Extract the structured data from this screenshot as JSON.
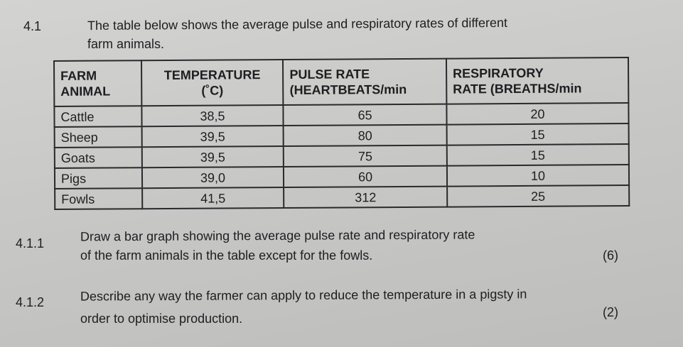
{
  "question": {
    "number": "4.1",
    "intro_line1": "The table below shows the average pulse and respiratory rates of different",
    "intro_line2": "farm animals."
  },
  "table": {
    "headers": [
      [
        "FARM",
        "ANIMAL"
      ],
      [
        "TEMPERATURE",
        "(˚C)"
      ],
      [
        "PULSE RATE",
        "(HEARTBEATS/min"
      ],
      [
        "RESPIRATORY",
        "RATE (BREATHS/min"
      ]
    ],
    "rows": [
      [
        "Cattle",
        "38,5",
        "65",
        "20"
      ],
      [
        "Sheep",
        "39,5",
        "80",
        "15"
      ],
      [
        "Goats",
        "39,5",
        "75",
        "15"
      ],
      [
        "Pigs",
        "39,0",
        "60",
        "10"
      ],
      [
        "Fowls",
        "41,5",
        "312",
        "25"
      ]
    ]
  },
  "subquestions": [
    {
      "number": "4.1.1",
      "line1": "Draw a bar graph showing the average pulse rate and respiratory rate",
      "line2": "of the farm animals in the table except for the fowls.",
      "marks": "(6)"
    },
    {
      "number": "4.1.2",
      "line1": "Describe any way the farmer can apply to reduce the temperature in a pigsty in",
      "line2": "order to optimise production.",
      "marks": "(2)"
    }
  ]
}
